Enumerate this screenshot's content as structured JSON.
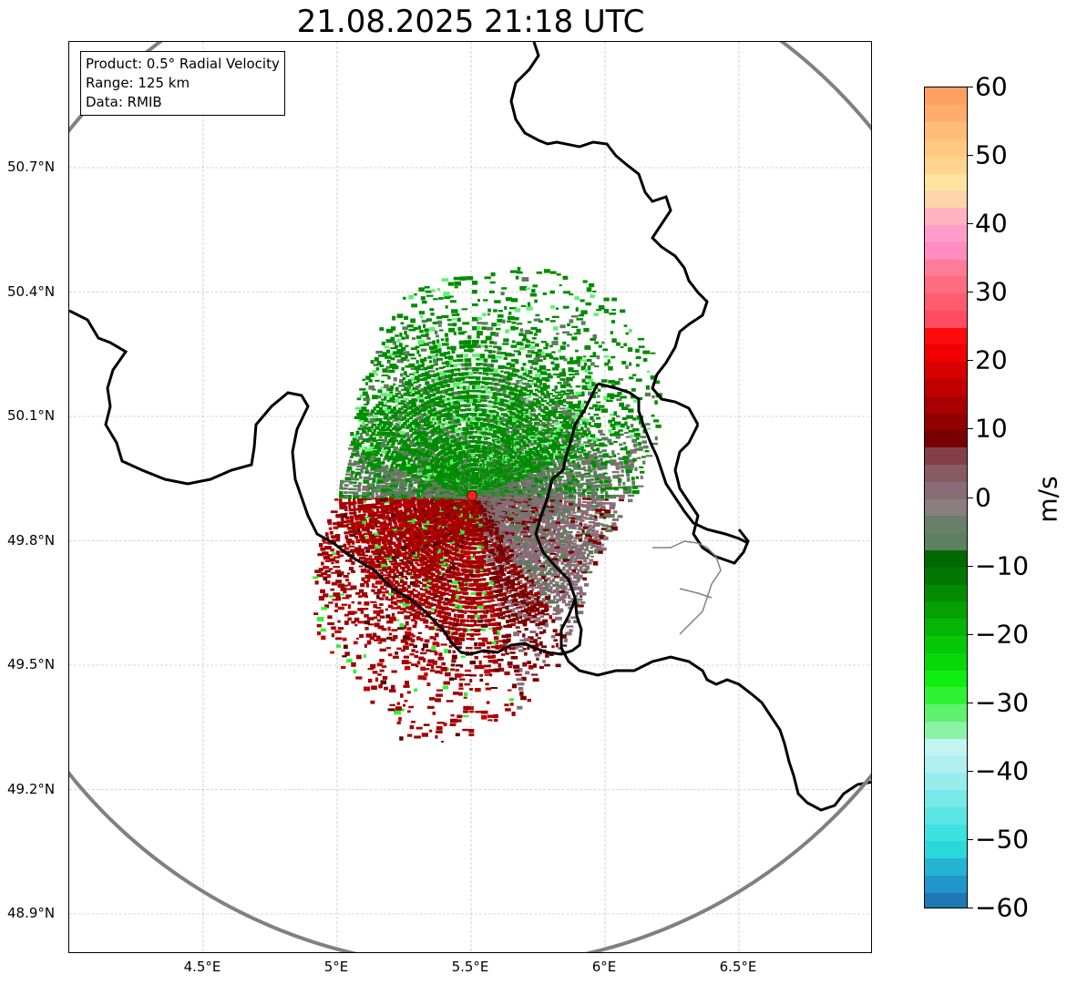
{
  "title": "21.08.2025 21:18 UTC",
  "info_box": {
    "product": "Product: 0.5° Radial Velocity",
    "range": "Range: 125 km",
    "data_source": "Data: RMIB"
  },
  "axes": {
    "lat_labels": [
      "50.7°N",
      "50.4°N",
      "50.1°N",
      "49.8°N",
      "49.5°N",
      "49.2°N",
      "48.9°N"
    ],
    "lon_labels": [
      "4.5°E",
      "5°E",
      "5.5°E",
      "6°E",
      "6.5°E"
    ],
    "lat_values": [
      50.7,
      50.4,
      50.1,
      49.8,
      49.5,
      49.2,
      48.9
    ],
    "lon_values": [
      4.5,
      5.0,
      5.5,
      6.0,
      6.5
    ],
    "lon_range": [
      4.0,
      7.0
    ],
    "lat_range": [
      48.8,
      51.0
    ],
    "grid": true
  },
  "radar": {
    "site_lon": 5.5,
    "site_lat": 49.91,
    "range_km": 125,
    "site_marker_color": "#e8281e"
  },
  "colorbar": {
    "unit_label": "m/s",
    "min": -60,
    "max": 60,
    "tick_labels": [
      "60",
      "50",
      "40",
      "30",
      "20",
      "10",
      "0",
      "−10",
      "−20",
      "−30",
      "−40",
      "−50",
      "−60"
    ],
    "tick_values": [
      60,
      50,
      40,
      30,
      20,
      10,
      0,
      -10,
      -20,
      -30,
      -40,
      -50,
      -60
    ],
    "colors": [
      "#1f77b4",
      "#2196cc",
      "#25b4d4",
      "#2ad8dc",
      "#3ee0e0",
      "#5ae4e4",
      "#78e8e8",
      "#98ecec",
      "#b0f0f0",
      "#c2f4f4",
      "#8cf2a8",
      "#5ef26e",
      "#30f234",
      "#10ee10",
      "#08d808",
      "#06c806",
      "#05b405",
      "#04a004",
      "#038c03",
      "#027802",
      "#016801",
      "#5c8060",
      "#68806a",
      "#8a7e80",
      "#8a6c78",
      "#885a64",
      "#844048",
      "#780000",
      "#900000",
      "#a80000",
      "#c00000",
      "#d80000",
      "#f00000",
      "#ff0a0a",
      "#ff4c60",
      "#ff5c70",
      "#ff6c80",
      "#ff7c98",
      "#ff8cc0",
      "#ff9cc8",
      "#ffb4c0",
      "#ffd4a8",
      "#ffe4a0",
      "#ffd490",
      "#ffc880",
      "#ffbc78",
      "#ffac6c",
      "#ffa060"
    ]
  },
  "colors": {
    "approaching": "#008c00",
    "receding": "#a00000",
    "near_zero_neg": "#5c7c5c",
    "near_zero_pos": "#8a6c78",
    "range_ring": "#808080",
    "borders": "#000000",
    "sub_borders": "#808080"
  }
}
